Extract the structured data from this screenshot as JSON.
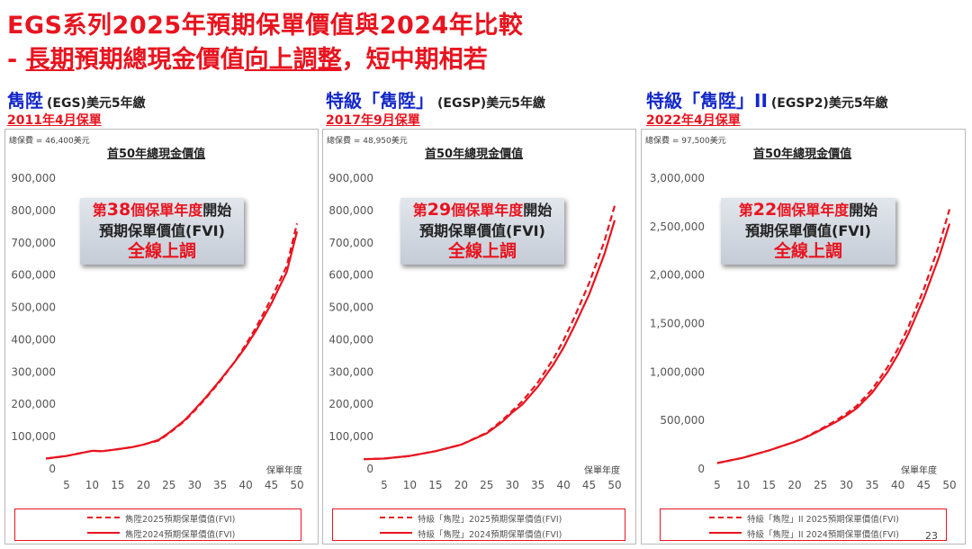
{
  "header": {
    "title_line1": "EGS系列2025年預期保單價值與2024年比較",
    "title_line2_prefix": "- ",
    "title_line2_u1": "長期",
    "title_line2_mid1": "預期總現金價值",
    "title_line2_u2": "向上調整",
    "title_line2_suffix": "，短中期相若"
  },
  "page_number": "23",
  "colors": {
    "accent": "#e8141f",
    "name_blue": "#1428c8"
  },
  "panels": [
    {
      "name": "雋陞",
      "code": "(EGS)",
      "term": "美元5年繳",
      "issue_date": "2011年4月保單",
      "premium_note": "總保費 = 46,400美元",
      "chart_title": "首50年總現金價值",
      "callout": {
        "prefix": "第",
        "number": "38",
        "unit": "個保單年度",
        "suffix": "開始",
        "line2": "預期保單價值(FVI)",
        "line3": "全線上調"
      },
      "x_axis_label": "保單年度",
      "legend": [
        "雋陞2025預期保單價值(FVI)",
        "雋陞2024預期保單價值(FVI)"
      ]
    },
    {
      "name": "特級「雋陞」",
      "code": "(EGSP)",
      "term": "美元5年繳",
      "issue_date": "2017年9月保單",
      "premium_note": "總保費 = 48,950美元",
      "chart_title": "首50年總現金價值",
      "callout": {
        "prefix": "第",
        "number": "29",
        "unit": "個保單年度",
        "suffix": "開始",
        "line2": "預期保單價值(FVI)",
        "line3": "全線上調"
      },
      "x_axis_label": "保單年度",
      "legend": [
        "特級「雋陞」2025預期保單價值(FVI)",
        "特級「雋陞」2024預期保單價值(FVI)"
      ]
    },
    {
      "name": "特級「雋陞」II",
      "code": "(EGSP2)",
      "term": "美元5年繳",
      "issue_date": "2022年4月保單",
      "premium_note": "總保費 = 97,500美元",
      "chart_title": "首50年總現金價值",
      "callout": {
        "prefix": "第",
        "number": "22",
        "unit": "個保單年度",
        "suffix": "開始",
        "line2": "預期保單價值(FVI)",
        "line3": "全線上調"
      },
      "x_axis_label": "保單年度",
      "legend": [
        "特級「雋陞」II 2025預期保單價值(FVI)",
        "特級「雋陞」II 2024預期保單價值(FVI)"
      ]
    }
  ],
  "chart_data": [
    {
      "type": "line",
      "title": "首50年總現金價值",
      "xlabel": "保單年度",
      "ylabel": "",
      "xlim": [
        5,
        50
      ],
      "ylim": [
        0,
        900000
      ],
      "x_ticks": [
        5,
        10,
        15,
        20,
        25,
        30,
        35,
        40,
        45,
        50
      ],
      "y_ticks": [
        0,
        100000,
        200000,
        300000,
        400000,
        500000,
        600000,
        700000,
        800000,
        900000
      ],
      "y_tick_labels": [
        "0",
        "100,000",
        "200,000",
        "300,000",
        "400,000",
        "500,000",
        "600,000",
        "700,000",
        "800,000",
        "900,000"
      ],
      "series": [
        {
          "name": "雋陞2025預期保單價值(FVI)",
          "style": "dashed",
          "x": [
            1,
            5,
            10,
            12,
            15,
            18,
            20,
            23,
            25,
            28,
            30,
            32,
            35,
            38,
            40,
            42,
            45,
            48,
            50
          ],
          "values": [
            32000,
            40000,
            56000,
            55000,
            61000,
            68000,
            75000,
            88000,
            110000,
            147000,
            180000,
            215000,
            272000,
            335000,
            385000,
            438000,
            528000,
            628000,
            760000
          ]
        },
        {
          "name": "雋陞2024預期保單價值(FVI)",
          "style": "solid",
          "x": [
            1,
            5,
            10,
            12,
            15,
            18,
            20,
            23,
            25,
            28,
            30,
            32,
            35,
            38,
            40,
            42,
            45,
            48,
            50
          ],
          "values": [
            32000,
            40000,
            56000,
            55000,
            61000,
            68000,
            75000,
            90000,
            112000,
            150000,
            183000,
            218000,
            275000,
            335000,
            378000,
            428000,
            512000,
            610000,
            735000
          ]
        }
      ]
    },
    {
      "type": "line",
      "title": "首50年總現金價值",
      "xlabel": "保單年度",
      "ylabel": "",
      "xlim": [
        5,
        50
      ],
      "ylim": [
        0,
        900000
      ],
      "x_ticks": [
        5,
        10,
        15,
        20,
        25,
        30,
        35,
        40,
        45,
        50
      ],
      "y_ticks": [
        0,
        100000,
        200000,
        300000,
        400000,
        500000,
        600000,
        700000,
        800000,
        900000
      ],
      "y_tick_labels": [
        "0",
        "100,000",
        "200,000",
        "300,000",
        "400,000",
        "500,000",
        "600,000",
        "700,000",
        "800,000",
        "900,000"
      ],
      "series": [
        {
          "name": "特級「雋陞」2025預期保單價值(FVI)",
          "style": "dashed",
          "x": [
            1,
            5,
            10,
            15,
            20,
            25,
            28,
            30,
            32,
            35,
            38,
            40,
            42,
            45,
            48,
            50
          ],
          "values": [
            30000,
            32000,
            40000,
            55000,
            75000,
            112000,
            150000,
            180000,
            210000,
            268000,
            340000,
            398000,
            465000,
            575000,
            705000,
            815000
          ]
        },
        {
          "name": "特級「雋陞」2024預期保單價值(FVI)",
          "style": "solid",
          "x": [
            1,
            5,
            10,
            15,
            20,
            25,
            28,
            30,
            32,
            35,
            38,
            40,
            42,
            45,
            48,
            50
          ],
          "values": [
            30000,
            32000,
            40000,
            55000,
            75000,
            110000,
            145000,
            175000,
            200000,
            255000,
            322000,
            375000,
            438000,
            540000,
            665000,
            770000
          ]
        }
      ]
    },
    {
      "type": "line",
      "title": "首50年總現金價值",
      "xlabel": "保單年度",
      "ylabel": "",
      "xlim": [
        5,
        50
      ],
      "ylim": [
        0,
        3000000
      ],
      "x_ticks": [
        5,
        10,
        15,
        20,
        25,
        30,
        35,
        40,
        45,
        50
      ],
      "y_ticks": [
        0,
        500000,
        1000000,
        1500000,
        2000000,
        2500000,
        3000000
      ],
      "y_tick_labels": [
        "0",
        "500,000",
        "1,000,000",
        "1,500,000",
        "2,000,000",
        "2,500,000",
        "3,000,000"
      ],
      "series": [
        {
          "name": "特級「雋陞」II 2025預期保單價值(FVI)",
          "style": "dashed",
          "x": [
            5,
            10,
            15,
            20,
            22,
            25,
            28,
            30,
            32,
            35,
            38,
            40,
            42,
            45,
            48,
            50
          ],
          "values": [
            60000,
            115000,
            190000,
            280000,
            325000,
            410000,
            500000,
            570000,
            650000,
            820000,
            1050000,
            1240000,
            1460000,
            1850000,
            2310000,
            2680000
          ]
        },
        {
          "name": "特級「雋陞」II 2024預期保單價值(FVI)",
          "style": "solid",
          "x": [
            5,
            10,
            15,
            20,
            22,
            25,
            28,
            30,
            32,
            35,
            38,
            40,
            42,
            45,
            48,
            50
          ],
          "values": [
            60000,
            115000,
            190000,
            280000,
            320000,
            400000,
            485000,
            550000,
            625000,
            785000,
            1000000,
            1180000,
            1390000,
            1760000,
            2190000,
            2530000
          ]
        }
      ]
    }
  ]
}
